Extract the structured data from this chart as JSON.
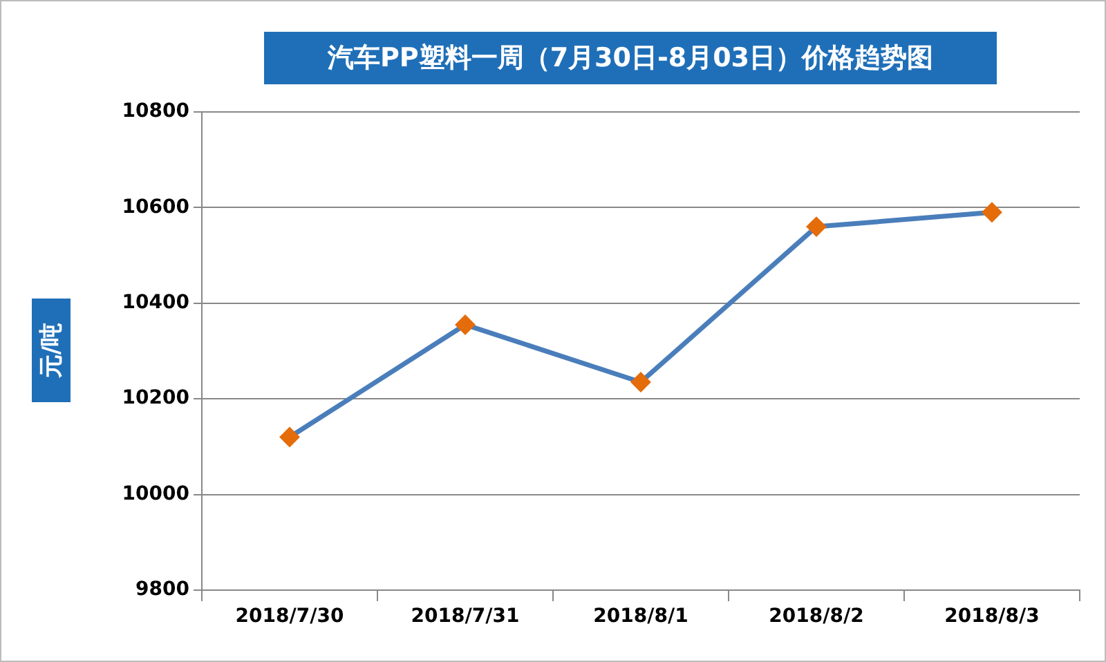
{
  "chart_data": {
    "type": "line",
    "title": "汽车PP塑料一周（7月30日-8月03日）价格趋势图",
    "ylabel": "元/吨",
    "categories": [
      "2018/7/30",
      "2018/7/31",
      "2018/8/1",
      "2018/8/2",
      "2018/8/3"
    ],
    "series": [
      {
        "color": "#4a7ebb",
        "colors": [
          "#e46c0a",
          "#e46c0a",
          "#e46c0a",
          "#e46c0a",
          "#e46c0a"
        ],
        "values": [
          10120,
          10355,
          10235,
          10560,
          10590
        ]
      }
    ],
    "ylim": [
      9800,
      10800
    ],
    "yticks": [
      9800,
      10000,
      10200,
      10400,
      10600,
      10800
    ],
    "grid": "y",
    "marker": "diamond",
    "line_style": "solid"
  }
}
